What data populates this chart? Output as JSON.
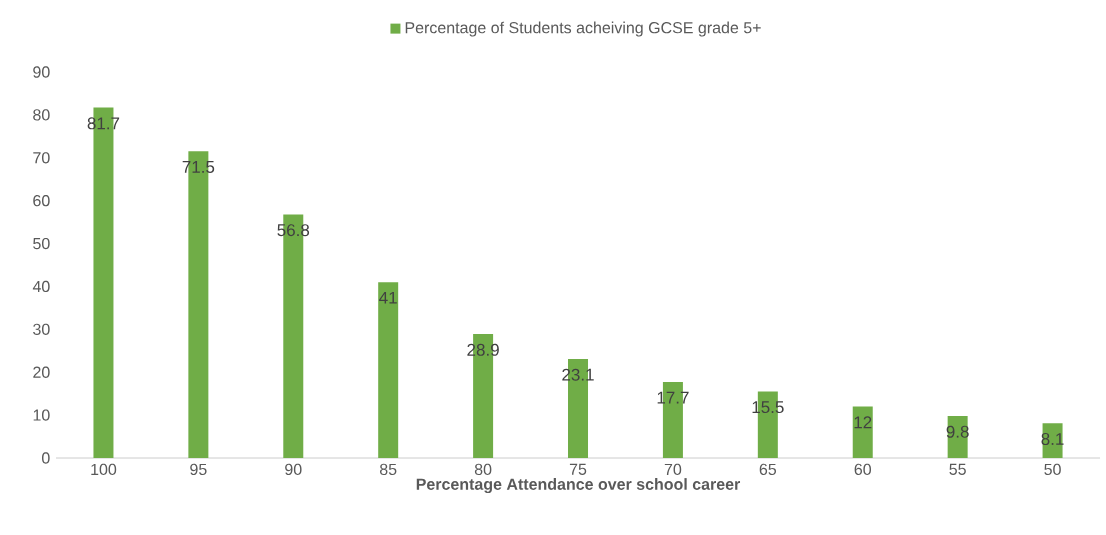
{
  "chart_data": {
    "type": "bar",
    "xlabel": "Percentage Attendance over school career",
    "categories": [
      "100",
      "95",
      "90",
      "85",
      "80",
      "75",
      "70",
      "65",
      "60",
      "55",
      "50"
    ],
    "series": [
      {
        "name": "Percentage of Students acheiving GCSE grade 5+",
        "color": "#70ad47",
        "values": [
          81.7,
          71.5,
          56.8,
          41,
          28.9,
          23.1,
          17.7,
          15.5,
          12,
          9.8,
          8.1
        ]
      }
    ],
    "ylim": [
      0,
      90
    ],
    "yticks": [
      0,
      10,
      20,
      30,
      40,
      50,
      60,
      70,
      80,
      90
    ],
    "data_labels": true,
    "legend": "top",
    "grid": false
  }
}
